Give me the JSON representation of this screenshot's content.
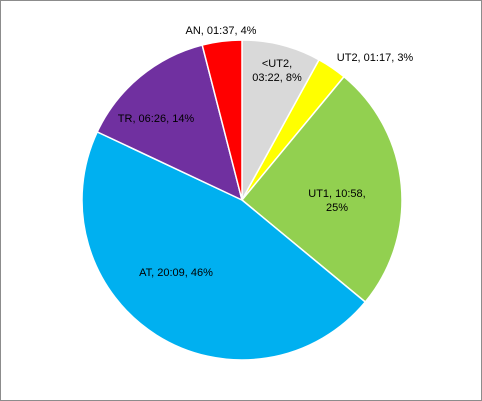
{
  "chart_data": {
    "type": "pie",
    "values": [
      8,
      3,
      25,
      46,
      14,
      4
    ],
    "value_labels": [
      "<UT2, 03:22, 8%",
      "UT2, 01:17, 3%",
      "UT1, 10:58, 25%",
      "AT, 20:09, 46%",
      "TR, 06:26, 14%",
      "AN, 01:37, 4%"
    ],
    "colors": [
      "#d9d9d9",
      "#ffff00",
      "#92d050",
      "#00b0f0",
      "#7030a0",
      "#ff0000"
    ]
  }
}
